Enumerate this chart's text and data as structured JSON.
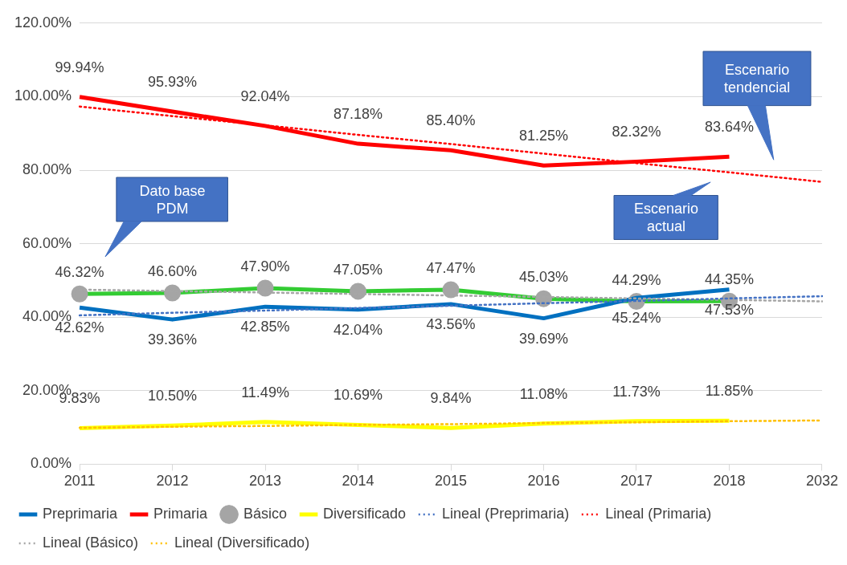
{
  "chart_data": {
    "type": "line",
    "categories": [
      "2011",
      "2012",
      "2013",
      "2014",
      "2015",
      "2016",
      "2017",
      "2018",
      "2032"
    ],
    "ylim": [
      0,
      120
    ],
    "yticks": [
      {
        "value": 0,
        "label": "0.00%"
      },
      {
        "value": 20,
        "label": "20.00%"
      },
      {
        "value": 40,
        "label": "40.00%"
      },
      {
        "value": 60,
        "label": "60.00%"
      },
      {
        "value": 80,
        "label": "80.00%"
      },
      {
        "value": 100,
        "label": "100.00%"
      },
      {
        "value": 120,
        "label": "120.00%"
      }
    ],
    "grid": "y",
    "legend": "bottom",
    "line_style": "solid",
    "series": [
      {
        "name": "Preprimaria",
        "color": "#0070c0",
        "marker": "none",
        "values": [
          42.62,
          39.36,
          42.85,
          42.04,
          43.56,
          39.69,
          45.24,
          47.53,
          null
        ],
        "value_labels": [
          "42.62%",
          "39.36%",
          "42.85%",
          "42.04%",
          "43.56%",
          "39.69%",
          "45.24%",
          "47.53%",
          null
        ]
      },
      {
        "name": "Primaria",
        "color": "#ff0000",
        "marker": "none",
        "values": [
          99.94,
          95.93,
          92.04,
          87.18,
          85.4,
          81.25,
          82.32,
          83.64,
          null
        ],
        "value_labels": [
          "99.94%",
          "95.93%",
          "92.04%",
          "87.18%",
          "85.40%",
          "81.25%",
          "82.32%",
          "83.64%",
          null
        ]
      },
      {
        "name": "Básico",
        "color": "#33cc33",
        "marker": "circle",
        "values": [
          46.32,
          46.6,
          47.9,
          47.05,
          47.47,
          45.03,
          44.29,
          44.35,
          null
        ],
        "value_labels": [
          "46.32%",
          "46.60%",
          "47.90%",
          "47.05%",
          "47.47%",
          "45.03%",
          "44.29%",
          "44.35%",
          null
        ]
      },
      {
        "name": "Diversificado",
        "color": "#ffff00",
        "marker": "none",
        "values": [
          9.83,
          10.5,
          11.49,
          10.69,
          9.84,
          11.08,
          11.73,
          11.85,
          null
        ],
        "value_labels": [
          "9.83%",
          "10.50%",
          "11.49%",
          "10.69%",
          "9.84%",
          "11.08%",
          "11.73%",
          "11.85%",
          null
        ]
      },
      {
        "name": "Lineal (Preprimaria)",
        "color": "#4472c4",
        "marker": "none",
        "line_style": "dotted",
        "values": [
          40.5,
          41.2,
          41.8,
          42.5,
          43.1,
          43.8,
          44.4,
          45.1,
          45.7
        ]
      },
      {
        "name": "Lineal (Primaria)",
        "color": "#ff0000",
        "marker": "none",
        "line_style": "dotted",
        "values": [
          97.3,
          94.7,
          92.2,
          89.6,
          87.1,
          84.5,
          81.9,
          79.4,
          76.8
        ]
      },
      {
        "name": "Lineal (Básico)",
        "color": "#a6a6a6",
        "marker": "none",
        "line_style": "dotted",
        "values": [
          47.5,
          47.1,
          46.7,
          46.3,
          45.9,
          45.5,
          45.1,
          44.7,
          44.3
        ]
      },
      {
        "name": "Lineal (Diversificado)",
        "color": "#ffc000",
        "marker": "none",
        "line_style": "dotted",
        "values": [
          9.9,
          10.2,
          10.4,
          10.7,
          10.9,
          11.2,
          11.4,
          11.7,
          11.9
        ]
      }
    ],
    "annotations": [
      "Dato base\nPDM",
      "Escenario\nactual",
      "Escenario\ntendencial"
    ]
  }
}
